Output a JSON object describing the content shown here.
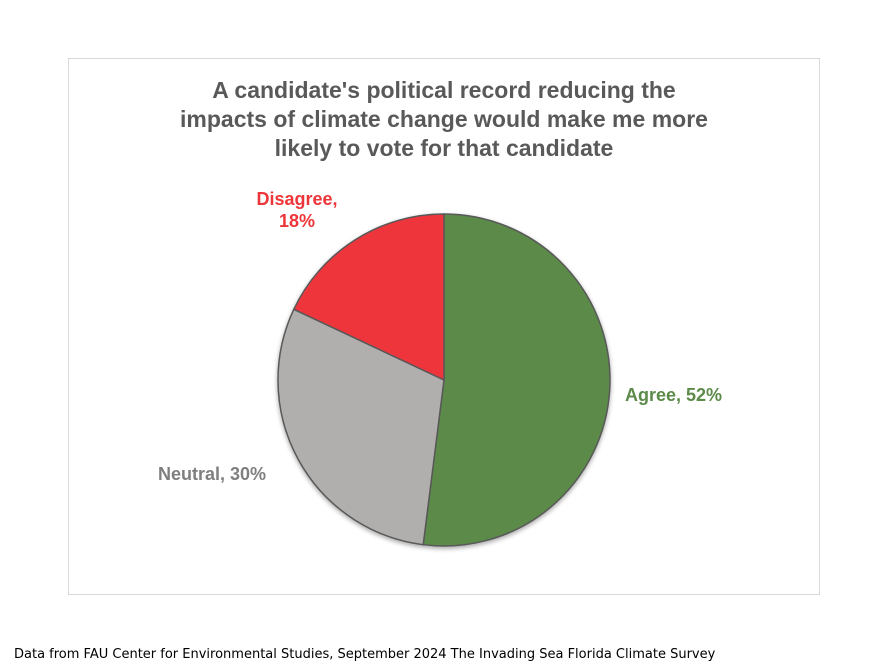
{
  "chart_data": {
    "type": "pie",
    "title_lines": [
      "A candidate's political record reducing the",
      "impacts of climate change would make me more",
      "likely to vote for that candidate"
    ],
    "slices": [
      {
        "label": "Agree",
        "value": 52,
        "color": "#5b8a49",
        "data_label": "Agree, 52%",
        "label_color": "#5b8a49"
      },
      {
        "label": "Neutral",
        "value": 30,
        "color": "#b1afad",
        "data_label": "Neutral, 30%",
        "label_color": "#7f7f7f"
      },
      {
        "label": "Disagree",
        "value": 18,
        "color": "#ee363a",
        "data_label_lines": [
          "Disagree,",
          "18%"
        ],
        "label_color": "#ee363a"
      }
    ],
    "legend": "none"
  },
  "footer": {
    "source": "Data from FAU Center for Environmental Studies, September 2024 The Invading Sea Florida Climate Survey"
  }
}
